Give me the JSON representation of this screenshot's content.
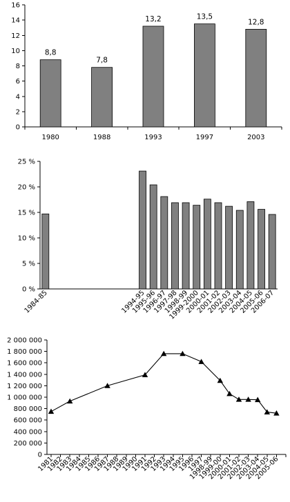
{
  "chart_data": [
    {
      "type": "bar",
      "categories": [
        "1980",
        "1988",
        "1993",
        "1997",
        "2003"
      ],
      "values": [
        8.8,
        7.8,
        13.2,
        13.5,
        12.8
      ],
      "value_labels": [
        "8,8",
        "7,8",
        "13,2",
        "13,5",
        "12,8"
      ],
      "ylim": [
        0,
        16
      ],
      "yticks": [
        "0",
        "2",
        "4",
        "6",
        "8",
        "10",
        "12",
        "14",
        "16"
      ],
      "grid": false,
      "bar_color": "#808080"
    },
    {
      "type": "bar",
      "categories": [
        "1984-85",
        "",
        "",
        "",
        "",
        "",
        "",
        "",
        "",
        "1994-95",
        "1995-96",
        "1996-97",
        "1997-98",
        "1998-99",
        "1999-2000",
        "2000-01",
        "2001-02",
        "2002-03",
        "2003-04",
        "2004-05",
        "2005-06",
        "2006-07"
      ],
      "values": [
        0.147,
        null,
        null,
        null,
        null,
        null,
        null,
        null,
        null,
        0.231,
        0.204,
        0.181,
        0.169,
        0.169,
        0.164,
        0.176,
        0.169,
        0.162,
        0.154,
        0.171,
        0.156,
        0.146
      ],
      "ylim": [
        0,
        0.25
      ],
      "yticks": [
        "0 %",
        "5 %",
        "10 %",
        "15 %",
        "20 %",
        "25 %"
      ],
      "grid": false,
      "bar_color": "#808080"
    },
    {
      "type": "line",
      "x": [
        "1981",
        "1982",
        "1983",
        "1984",
        "1985",
        "1986",
        "1987",
        "1988",
        "1989",
        "1990",
        "1991",
        "1992",
        "1993",
        "1994",
        "1995",
        "1996",
        "1997",
        "1998-99",
        "1999-00",
        "2000-01",
        "2001-02",
        "2002-03",
        "2003-04",
        "2004-05",
        "2005-06",
        ""
      ],
      "points": [
        {
          "x": "1981",
          "y": 750000
        },
        {
          "x": "1983",
          "y": 930000
        },
        {
          "x": "1987",
          "y": 1200000
        },
        {
          "x": "1991",
          "y": 1390000
        },
        {
          "x": "1993",
          "y": 1760000
        },
        {
          "x": "1995",
          "y": 1760000
        },
        {
          "x": "1997",
          "y": 1620000
        },
        {
          "x": "1999-00",
          "y": 1290000
        },
        {
          "x": "2000-01",
          "y": 1060000
        },
        {
          "x": "2001-02",
          "y": 960000
        },
        {
          "x": "2002-03",
          "y": 960000
        },
        {
          "x": "2003-04",
          "y": 955000
        },
        {
          "x": "2004-05",
          "y": 740000
        },
        {
          "x": "2005-06",
          "y": 720000
        }
      ],
      "marker": "triangle",
      "ylim": [
        0,
        2000000
      ],
      "yticks": [
        "0",
        "200 000",
        "400 000",
        "600 000",
        "800 000",
        "1 000 000",
        "1 200 000",
        "1 400 000",
        "1 600 000",
        "1 800 000",
        "2 000 000"
      ],
      "grid": false
    }
  ]
}
